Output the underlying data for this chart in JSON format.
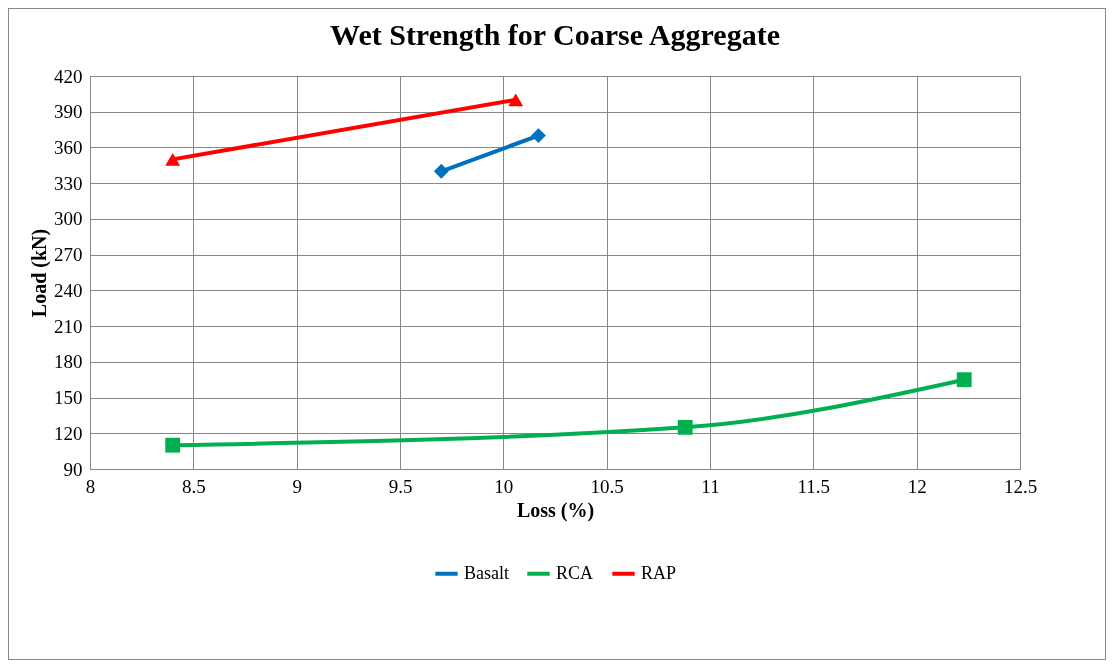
{
  "chart_data": {
    "type": "line",
    "title": "Wet Strength for Coarse Aggregate",
    "xlabel": "Loss (%)",
    "ylabel": "Load (kN)",
    "xlim": [
      8,
      12.5
    ],
    "xticks": [
      8,
      8.5,
      9,
      9.5,
      10,
      10.5,
      11,
      11.5,
      12,
      12.5
    ],
    "ylim": [
      90,
      420
    ],
    "yticks": [
      90,
      120,
      150,
      180,
      210,
      240,
      270,
      300,
      330,
      360,
      390,
      420
    ],
    "grid": true,
    "legend": "bottom",
    "line_style": "solid",
    "series": [
      {
        "name": "Basalt",
        "color": "#0070c0",
        "marker": "diamond",
        "x": [
          9.7,
          10.17
        ],
        "values": [
          340,
          370
        ]
      },
      {
        "name": "RCA",
        "color": "#00b050",
        "marker": "square",
        "x": [
          8.4,
          10.88,
          12.23
        ],
        "values": [
          110,
          125,
          165
        ]
      },
      {
        "name": "RAP",
        "color": "#ff0000",
        "marker": "triangle",
        "x": [
          8.4,
          10.06
        ],
        "values": [
          350,
          400
        ]
      }
    ]
  }
}
